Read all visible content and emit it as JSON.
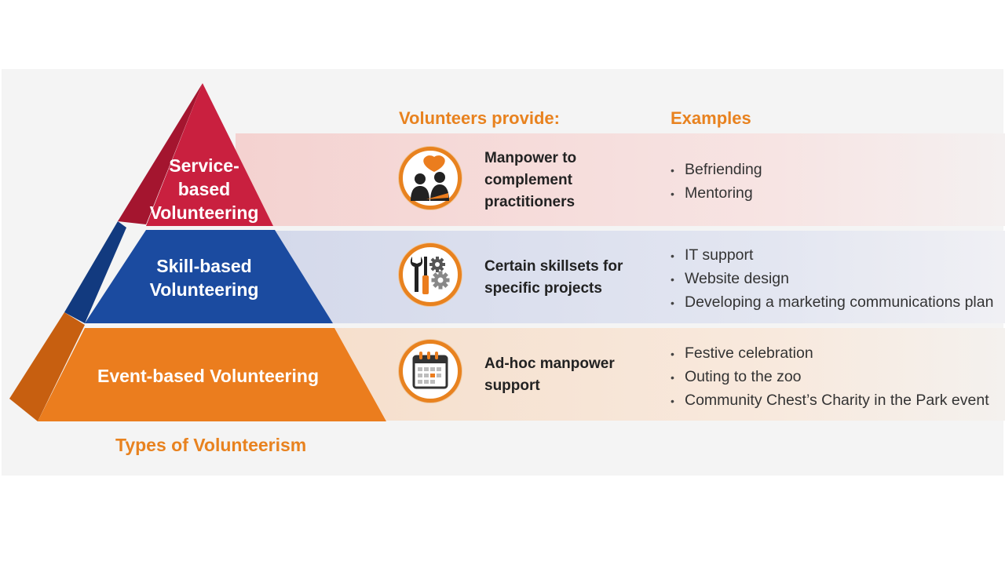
{
  "headers": {
    "provide": "Volunteers provide:",
    "examples": "Examples"
  },
  "tiers": [
    {
      "label_lines": [
        "Service-",
        "based",
        "Volunteering"
      ],
      "color": "#c9203f",
      "icon": "people-speech-icon",
      "provide": [
        "Manpower to",
        "complement",
        "practitioners"
      ],
      "examples": [
        "Befriending",
        "Mentoring"
      ]
    },
    {
      "label_lines": [
        "Skill-based",
        "Volunteering"
      ],
      "color": "#1b4ba0",
      "icon": "tools-gear-icon",
      "provide": [
        "Certain skillsets for",
        "specific projects"
      ],
      "examples": [
        "IT support",
        "Website design",
        "Developing a marketing communications plan"
      ]
    },
    {
      "label_lines": [
        "Event-based Volunteering"
      ],
      "color": "#eb7d1e",
      "icon": "calendar-icon",
      "provide": [
        "Ad-hoc manpower",
        "support"
      ],
      "examples": [
        "Festive celebration",
        "Outing to the zoo",
        "Community Chest’s Charity in the Park event"
      ]
    }
  ],
  "footer": "Types of Volunteerism",
  "colors": {
    "accent": "#e8821f"
  }
}
